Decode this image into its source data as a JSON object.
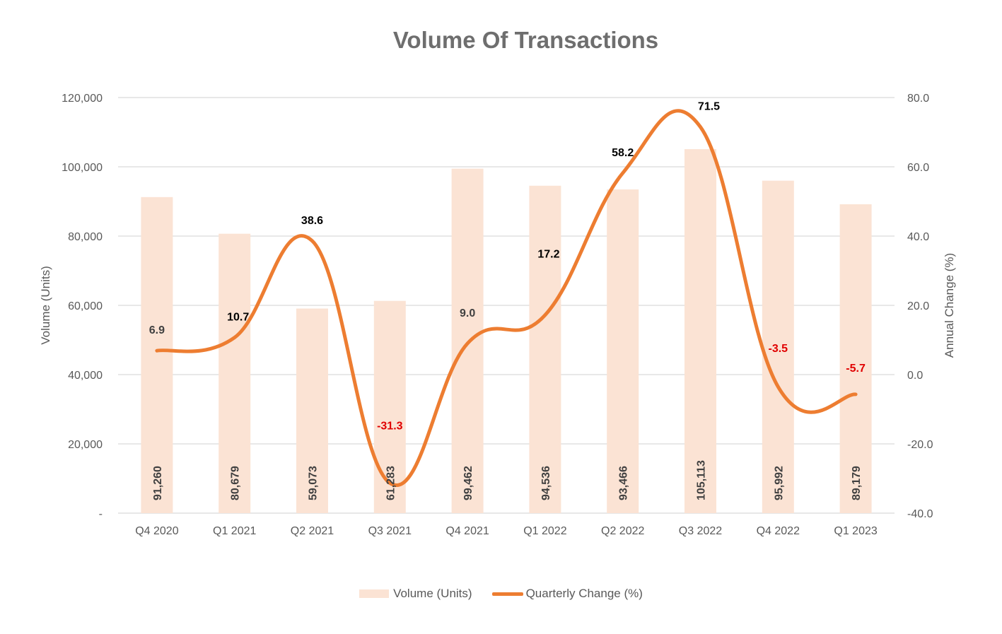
{
  "chart_data": {
    "type": "bar+line",
    "title": "Volume Of Transactions",
    "categories": [
      "Q4 2020",
      "Q1 2021",
      "Q2 2021",
      "Q3 2021",
      "Q4 2021",
      "Q1 2022",
      "Q2 2022",
      "Q3 2022",
      "Q4 2022",
      "Q1 2023"
    ],
    "series": [
      {
        "name": "Volume (Units)",
        "type": "bar",
        "axis": "left",
        "values": [
          91260,
          80679,
          59073,
          61283,
          99462,
          94536,
          93466,
          105113,
          95992,
          89179
        ],
        "labels": [
          "91,260",
          "80,679",
          "59,073",
          "61,283",
          "99,462",
          "94,536",
          "93,466",
          "105,113",
          "95,992",
          "89,179"
        ],
        "color": "#fbe3d4"
      },
      {
        "name": "Quarterly Change (%)",
        "type": "line",
        "axis": "right",
        "values": [
          6.9,
          10.7,
          38.6,
          -31.3,
          9.0,
          17.2,
          58.2,
          71.5,
          -3.5,
          -5.7
        ],
        "labels": [
          "6.9",
          "10.7",
          "38.6",
          "-31.3",
          "9.0",
          "17.2",
          "58.2",
          "71.5",
          "-3.5",
          "-5.7"
        ],
        "color": "#ed7d31"
      }
    ],
    "ylabel": "Volume (Units)",
    "y2label": "Annual Change (%)",
    "ylim": [
      0,
      120000
    ],
    "y2lim": [
      -40,
      80
    ],
    "yticks": [
      "-",
      "20,000",
      "40,000",
      "60,000",
      "80,000",
      "100,000",
      "120,000"
    ],
    "y2ticks": [
      "-40.0",
      "-20.0",
      "0.0",
      "20.0",
      "40.0",
      "60.0",
      "80.0"
    ],
    "grid": true,
    "legend": "bottom",
    "colors": {
      "positive_label": "#000000",
      "negative_label": "#e00000",
      "muted_label": "#404040",
      "axis_text": "#595959",
      "grid": "#d9d9d9"
    }
  }
}
